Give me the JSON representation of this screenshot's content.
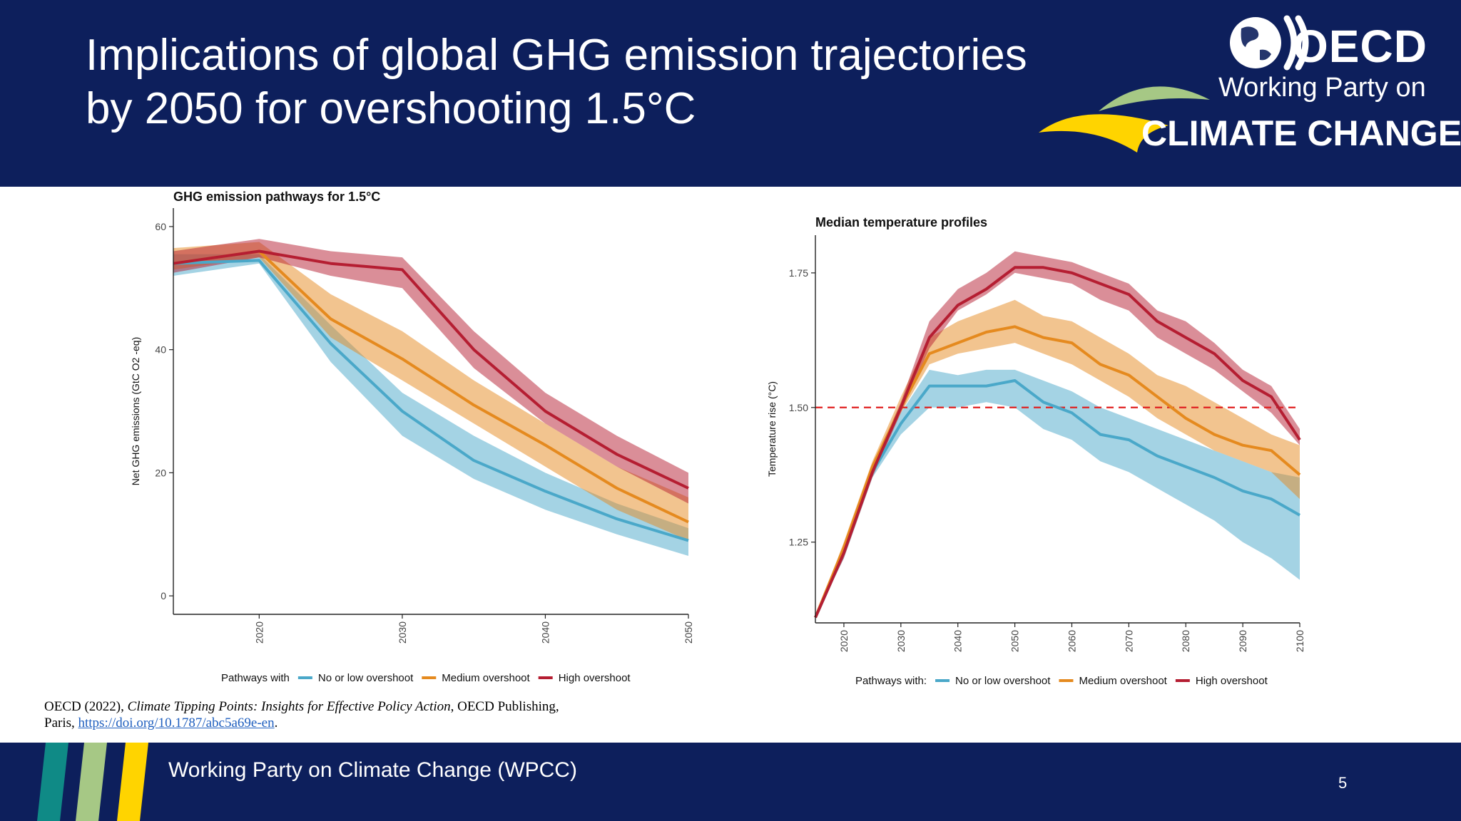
{
  "slide": {
    "title": "Implications of global GHG emission trajectories by 2050 for overshooting 1.5°C",
    "logo": {
      "org": "OECD",
      "line1": "Working Party on",
      "line2": "CLIMATE CHANGE"
    },
    "citation": {
      "prefix": "OECD (2022), ",
      "title": "Climate Tipping Points: Insights for Effective Policy Action",
      "suffix": ", OECD Publishing,",
      "line2_prefix": "Paris, ",
      "link": "https://doi.org/10.1787/abc5a69e-en",
      "line2_suffix": "."
    },
    "footer": {
      "text": "Working Party on Climate Change (WPCC)",
      "page_number": "5"
    }
  },
  "colors": {
    "navy": "#0d1f5c",
    "blue": "#4aa8c9",
    "orange": "#e58a1f",
    "red": "#b51e32",
    "threshold": "#e02020",
    "footer_stripes": [
      "#0f8a86",
      "#a6c885",
      "#ffd400"
    ]
  },
  "chart_data": [
    {
      "type": "area",
      "title": "GHG emission pathways for 1.5°C",
      "xlabel": "",
      "ylabel": "Net GHG emissions (GtC O2 -eq)",
      "xlim": [
        2014,
        2050
      ],
      "ylim": [
        -3,
        63
      ],
      "x_ticks": [
        2020,
        2030,
        2040,
        2050
      ],
      "y_ticks": [
        0,
        20,
        40,
        60
      ],
      "x_tick_labels_rotated": true,
      "grid": false,
      "legend": {
        "position": "bottom",
        "title": "Pathways with",
        "entries": [
          "No or low overshoot",
          "Medium overshoot",
          "High overshoot"
        ]
      },
      "series": [
        {
          "name": "No or low overshoot",
          "color": "#4aa8c9",
          "x": [
            2014,
            2020,
            2025,
            2030,
            2035,
            2040,
            2045,
            2050
          ],
          "median": [
            54,
            54.5,
            41,
            30,
            22,
            17,
            12.5,
            9
          ],
          "lower": [
            52,
            54,
            38,
            26,
            19,
            14,
            10,
            6.5
          ],
          "upper": [
            55.5,
            55.5,
            44,
            33,
            26,
            20,
            15,
            11
          ]
        },
        {
          "name": "Medium overshoot",
          "color": "#e58a1f",
          "x": [
            2014,
            2020,
            2025,
            2030,
            2035,
            2040,
            2045,
            2050
          ],
          "median": [
            54,
            56,
            45,
            38.5,
            31,
            24.5,
            17.5,
            12
          ],
          "lower": [
            53,
            55,
            42,
            35,
            28,
            21,
            14,
            9
          ],
          "upper": [
            56.5,
            57.5,
            49,
            43,
            35,
            28,
            21,
            16
          ]
        },
        {
          "name": "High overshoot",
          "color": "#b51e32",
          "x": [
            2014,
            2020,
            2025,
            2030,
            2035,
            2040,
            2045,
            2050
          ],
          "median": [
            54,
            56,
            54,
            53,
            40,
            30,
            23,
            17.5
          ],
          "lower": [
            52.5,
            55,
            52,
            50,
            37,
            28,
            21,
            15
          ],
          "upper": [
            56,
            58,
            56,
            55,
            43,
            33,
            26,
            20
          ]
        }
      ]
    },
    {
      "type": "area",
      "title": "Median temperature profiles",
      "xlabel": "",
      "ylabel": "Temperature rise (°C)",
      "xlim": [
        2015,
        2100
      ],
      "ylim": [
        1.1,
        1.82
      ],
      "x_ticks": [
        2020,
        2030,
        2040,
        2050,
        2060,
        2070,
        2080,
        2090,
        2100
      ],
      "y_ticks": [
        1.25,
        1.5,
        1.75
      ],
      "y_tick_labels": [
        "1.25",
        "1.50",
        "1.75"
      ],
      "x_tick_labels_rotated": true,
      "grid": false,
      "reference_line": {
        "y": 1.5,
        "style": "dashed",
        "color": "#e02020"
      },
      "legend": {
        "position": "bottom",
        "title": "Pathways with:",
        "entries": [
          "No or low overshoot",
          "Medium overshoot",
          "High overshoot"
        ]
      },
      "series": [
        {
          "name": "No or low overshoot",
          "color": "#4aa8c9",
          "x": [
            2015,
            2020,
            2025,
            2030,
            2035,
            2040,
            2045,
            2050,
            2055,
            2060,
            2065,
            2070,
            2075,
            2080,
            2085,
            2090,
            2095,
            2100
          ],
          "median": [
            1.11,
            1.23,
            1.38,
            1.47,
            1.54,
            1.54,
            1.54,
            1.55,
            1.51,
            1.49,
            1.45,
            1.44,
            1.41,
            1.39,
            1.37,
            1.345,
            1.33,
            1.3
          ],
          "lower": [
            1.11,
            1.22,
            1.37,
            1.45,
            1.5,
            1.5,
            1.51,
            1.5,
            1.46,
            1.44,
            1.4,
            1.38,
            1.35,
            1.32,
            1.29,
            1.25,
            1.22,
            1.18
          ],
          "upper": [
            1.11,
            1.24,
            1.39,
            1.49,
            1.57,
            1.56,
            1.57,
            1.57,
            1.55,
            1.53,
            1.5,
            1.48,
            1.46,
            1.44,
            1.42,
            1.4,
            1.38,
            1.37
          ]
        },
        {
          "name": "Medium overshoot",
          "color": "#e58a1f",
          "x": [
            2015,
            2020,
            2025,
            2030,
            2035,
            2040,
            2045,
            2050,
            2055,
            2060,
            2065,
            2070,
            2075,
            2080,
            2085,
            2090,
            2095,
            2100
          ],
          "median": [
            1.11,
            1.24,
            1.39,
            1.5,
            1.6,
            1.62,
            1.64,
            1.65,
            1.63,
            1.62,
            1.58,
            1.56,
            1.52,
            1.48,
            1.45,
            1.43,
            1.42,
            1.375
          ],
          "lower": [
            1.11,
            1.23,
            1.38,
            1.49,
            1.58,
            1.6,
            1.61,
            1.62,
            1.6,
            1.58,
            1.55,
            1.52,
            1.48,
            1.45,
            1.42,
            1.4,
            1.38,
            1.33
          ],
          "upper": [
            1.11,
            1.25,
            1.4,
            1.52,
            1.63,
            1.66,
            1.68,
            1.7,
            1.67,
            1.66,
            1.63,
            1.6,
            1.56,
            1.54,
            1.51,
            1.48,
            1.45,
            1.43
          ]
        },
        {
          "name": "High overshoot",
          "color": "#b51e32",
          "x": [
            2015,
            2020,
            2025,
            2030,
            2035,
            2040,
            2045,
            2050,
            2055,
            2060,
            2065,
            2070,
            2075,
            2080,
            2085,
            2090,
            2095,
            2100
          ],
          "median": [
            1.11,
            1.23,
            1.38,
            1.5,
            1.63,
            1.69,
            1.72,
            1.76,
            1.76,
            1.75,
            1.73,
            1.71,
            1.66,
            1.63,
            1.6,
            1.55,
            1.52,
            1.44
          ],
          "lower": [
            1.11,
            1.22,
            1.37,
            1.49,
            1.61,
            1.68,
            1.71,
            1.75,
            1.74,
            1.73,
            1.7,
            1.68,
            1.63,
            1.6,
            1.57,
            1.53,
            1.49,
            1.43
          ],
          "upper": [
            1.11,
            1.24,
            1.39,
            1.51,
            1.66,
            1.72,
            1.75,
            1.79,
            1.78,
            1.77,
            1.75,
            1.73,
            1.68,
            1.66,
            1.62,
            1.57,
            1.54,
            1.46
          ]
        }
      ]
    }
  ]
}
